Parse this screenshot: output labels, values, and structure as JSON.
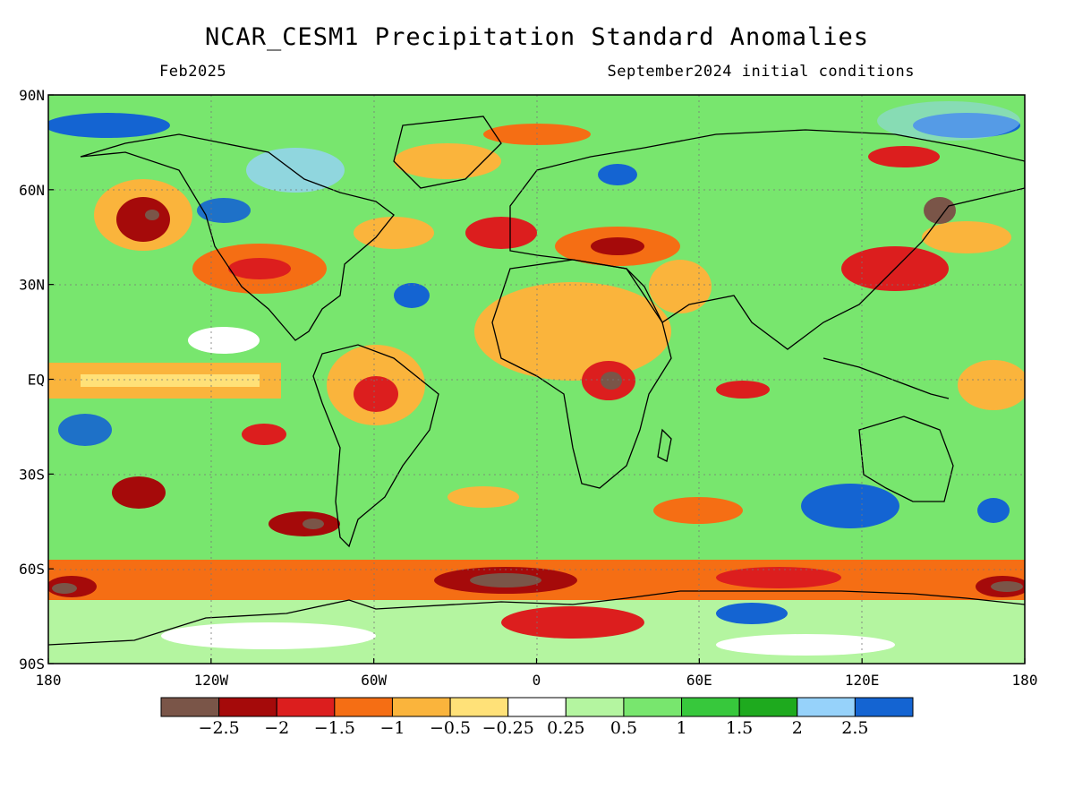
{
  "map": {
    "title": "NCAR_CESM1 Precipitation Standard Anomalies",
    "valid_month": "Feb2025",
    "initial_conditions": "September2024 initial conditions",
    "lat_labels": [
      "90N",
      "60N",
      "30N",
      "EQ",
      "30S",
      "60S",
      "90S"
    ],
    "lat_values": [
      90,
      60,
      30,
      0,
      -30,
      -60,
      -90
    ],
    "lon_labels": [
      "180",
      "120W",
      "60W",
      "0",
      "60E",
      "120E",
      "180"
    ],
    "lon_values": [
      -180,
      -120,
      -60,
      0,
      60,
      120,
      180
    ],
    "colorbar": {
      "colors": [
        "#7a5548",
        "#a50a0a",
        "#dc1e1e",
        "#f56e14",
        "#fab43c",
        "#ffe178",
        "#ffffff",
        "#b4f5a0",
        "#78e66e",
        "#37c83c",
        "#1eaa1e",
        "#96d2fa",
        "#1464d2"
      ],
      "labels": [
        "−2.5",
        "−2",
        "−1.5",
        "−1",
        "−0.5",
        "−0.25",
        "0.25",
        "0.5",
        "1",
        "1.5",
        "2",
        "2.5"
      ]
    }
  }
}
